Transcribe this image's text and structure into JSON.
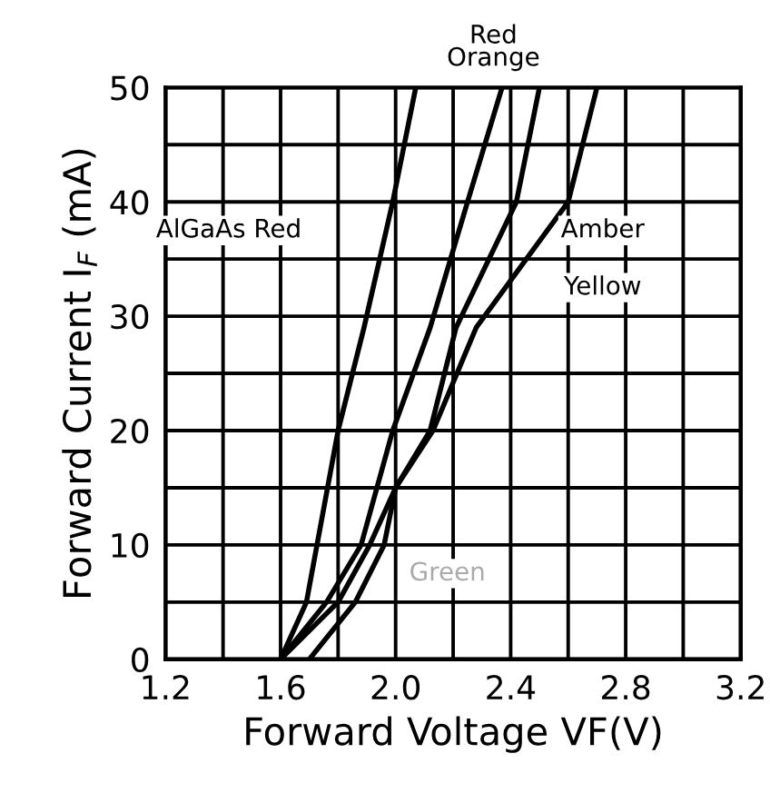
{
  "chart_data": {
    "type": "line",
    "xlabel": "Forward Voltage VF(V)",
    "ylabel": "Forward Current I$_{F}$ (mA)",
    "series": [
      {
        "color": "#000000",
        "x": [
          1.6,
          1.69,
          1.8,
          1.89,
          1.99,
          2.07
        ],
        "values": [
          0,
          5,
          20,
          29,
          40,
          50
        ]
      },
      {
        "color": "#000000",
        "x": [
          1.6,
          1.76,
          1.88,
          1.99,
          2.12,
          2.25,
          2.37
        ],
        "values": [
          0,
          5,
          10,
          20,
          29,
          40,
          50
        ]
      },
      {
        "color": "#000000",
        "x": [
          1.6,
          1.8,
          1.91,
          2.0,
          2.12,
          2.21,
          2.42,
          2.5
        ],
        "values": [
          0,
          5,
          10,
          15,
          20,
          29,
          40,
          50
        ]
      },
      {
        "color": "#000000",
        "x": [
          1.7,
          1.86,
          1.96,
          2.0,
          2.13,
          2.28,
          2.6,
          2.7
        ],
        "values": [
          0,
          5,
          10,
          15,
          20,
          29,
          40,
          50
        ]
      }
    ],
    "xlim": [
      1.2,
      3.2
    ],
    "ylim": [
      0,
      50
    ],
    "xticks": [
      1.2,
      {
        "value": 1.4,
        "label": null
      },
      1.6,
      {
        "value": 1.8,
        "label": null
      },
      {
        "value": 2.0,
        "label": "2.0"
      },
      {
        "value": 2.2,
        "label": null
      },
      2.4,
      {
        "value": 2.6,
        "label": null
      },
      2.8,
      {
        "value": 3.0,
        "label": null
      },
      3.2
    ],
    "yticks": [
      0,
      {
        "value": 5,
        "label": null
      },
      10,
      {
        "value": 15,
        "label": null
      },
      20,
      {
        "value": 25,
        "label": null
      },
      30,
      {
        "value": 35,
        "label": null
      },
      40,
      {
        "value": 45,
        "label": null
      },
      50
    ],
    "grid": true,
    "marker": "none",
    "line_style": "solid",
    "legend": false,
    "annotations": [
      "AlGaAs Red",
      "Red\nOrange",
      "Amber",
      "Yellow",
      "Green"
    ]
  }
}
